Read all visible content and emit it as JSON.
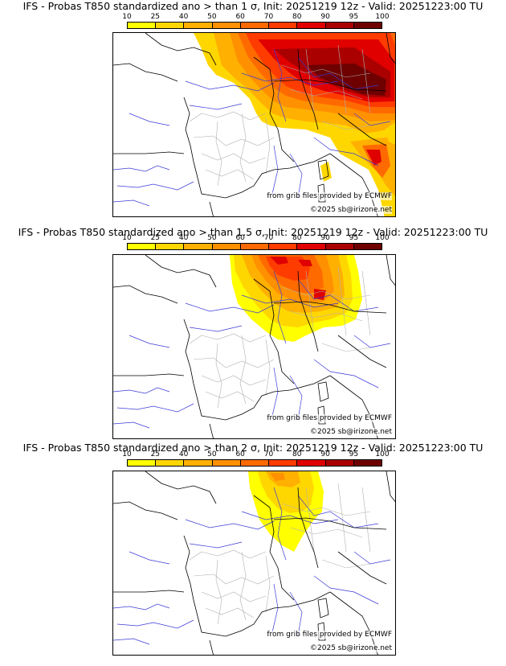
{
  "legend": {
    "ticks": [
      "10",
      "25",
      "40",
      "50",
      "60",
      "70",
      "80",
      "90",
      "95",
      "100"
    ],
    "colors": [
      "#ffff00",
      "#ffd700",
      "#ffb000",
      "#ff9000",
      "#ff6a00",
      "#ff3c00",
      "#e00000",
      "#aa0000",
      "#6e0000"
    ]
  },
  "credits": {
    "source": "from grib files provided by ECMWF",
    "copyright": "©2025 sb@irizone.net"
  },
  "panels": [
    {
      "title": "IFS - Probas T850  standardized ano > than 1 σ, Init: 20251219 12z - Valid: 20251223:00 TU"
    },
    {
      "title": "IFS - Probas T850  standardized ano > than 1.5 σ, Init: 20251219 12z - Valid: 20251223:00 TU"
    },
    {
      "title": "IFS - Probas T850  standardized ano > than 2 σ, Init: 20251219 12z - Valid: 20251223:00 TU"
    }
  ]
}
